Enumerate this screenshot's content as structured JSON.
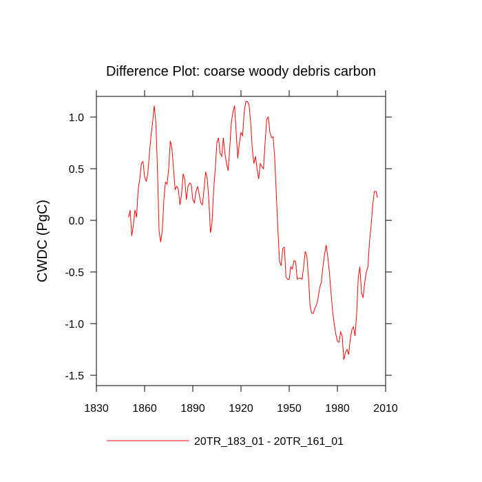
{
  "chart_data": {
    "type": "line",
    "title": "Difference Plot: coarse woody debris carbon",
    "y_label": "CWDC  (PgC)",
    "x": [
      1850,
      1851,
      1852,
      1853,
      1854,
      1855,
      1856,
      1857,
      1858,
      1859,
      1860,
      1861,
      1862,
      1863,
      1864,
      1865,
      1866,
      1867,
      1868,
      1869,
      1870,
      1871,
      1872,
      1873,
      1874,
      1875,
      1876,
      1877,
      1878,
      1879,
      1880,
      1881,
      1882,
      1883,
      1884,
      1885,
      1886,
      1887,
      1888,
      1889,
      1890,
      1891,
      1892,
      1893,
      1894,
      1895,
      1896,
      1897,
      1898,
      1899,
      1900,
      1901,
      1902,
      1903,
      1904,
      1905,
      1906,
      1907,
      1908,
      1909,
      1910,
      1911,
      1912,
      1913,
      1914,
      1915,
      1916,
      1917,
      1918,
      1919,
      1920,
      1921,
      1922,
      1923,
      1924,
      1925,
      1926,
      1927,
      1928,
      1929,
      1930,
      1931,
      1932,
      1933,
      1934,
      1935,
      1936,
      1937,
      1938,
      1939,
      1940,
      1941,
      1942,
      1943,
      1944,
      1945,
      1946,
      1947,
      1948,
      1949,
      1950,
      1951,
      1952,
      1953,
      1954,
      1955,
      1956,
      1957,
      1958,
      1959,
      1960,
      1961,
      1962,
      1963,
      1964,
      1965,
      1966,
      1967,
      1968,
      1969,
      1970,
      1971,
      1972,
      1973,
      1974,
      1975,
      1976,
      1977,
      1978,
      1979,
      1980,
      1981,
      1982,
      1983,
      1984,
      1985,
      1986,
      1987,
      1988,
      1989,
      1990,
      1991,
      1992,
      1993,
      1994,
      1995,
      1996,
      1997,
      1998,
      1999,
      2000,
      2001,
      2002,
      2003,
      2004,
      2005
    ],
    "series": [
      {
        "name": "20TR_183_01 - 20TR_161_01",
        "color": "#ff0000",
        "values": [
          0.03,
          0.1,
          -0.15,
          -0.05,
          0.1,
          0.03,
          0.3,
          0.4,
          0.55,
          0.57,
          0.42,
          0.38,
          0.45,
          0.65,
          0.82,
          0.95,
          1.11,
          0.95,
          0.5,
          -0.1,
          -0.21,
          -0.1,
          0.2,
          0.37,
          0.35,
          0.5,
          0.77,
          0.7,
          0.5,
          0.3,
          0.33,
          0.3,
          0.15,
          0.25,
          0.45,
          0.4,
          0.2,
          0.33,
          0.36,
          0.35,
          0.2,
          0.17,
          0.28,
          0.33,
          0.25,
          0.17,
          0.15,
          0.3,
          0.47,
          0.4,
          0.2,
          -0.12,
          -0.02,
          0.3,
          0.5,
          0.75,
          0.8,
          0.65,
          0.62,
          0.8,
          0.65,
          0.55,
          0.48,
          0.7,
          0.95,
          1.05,
          1.11,
          0.85,
          0.6,
          0.75,
          0.85,
          0.82,
          1.05,
          1.15,
          1.15,
          1.12,
          0.95,
          0.7,
          0.55,
          0.62,
          0.5,
          0.4,
          0.55,
          0.52,
          0.5,
          0.75,
          0.98,
          1.0,
          0.85,
          0.8,
          0.81,
          0.6,
          0.25,
          -0.1,
          -0.4,
          -0.44,
          -0.27,
          -0.26,
          -0.55,
          -0.57,
          -0.57,
          -0.45,
          -0.47,
          -0.39,
          -0.4,
          -0.57,
          -0.56,
          -0.56,
          -0.57,
          -0.45,
          -0.3,
          -0.35,
          -0.55,
          -0.83,
          -0.9,
          -0.9,
          -0.85,
          -0.82,
          -0.75,
          -0.65,
          -0.6,
          -0.45,
          -0.33,
          -0.24,
          -0.35,
          -0.5,
          -0.7,
          -0.88,
          -1.0,
          -1.1,
          -1.17,
          -1.18,
          -1.08,
          -1.12,
          -1.35,
          -1.28,
          -1.25,
          -1.3,
          -1.15,
          -1.06,
          -1.03,
          -1.12,
          -0.9,
          -0.55,
          -0.45,
          -0.7,
          -0.75,
          -0.6,
          -0.5,
          -0.45,
          -0.2,
          -0.05,
          0.15,
          0.28,
          0.28,
          0.22
        ]
      }
    ],
    "xlim": [
      1830,
      2010
    ],
    "ylim": [
      -1.6,
      1.2
    ],
    "xticks": [
      1830,
      1860,
      1890,
      1920,
      1950,
      1980,
      2010
    ],
    "yticks": [
      {
        "value": -1.5,
        "label": "-1.5"
      },
      {
        "value": -1,
        "label": "-1.0"
      },
      -0.5,
      {
        "value": 0,
        "label": "0.0"
      },
      0.5,
      {
        "value": 1,
        "label": "1.0"
      }
    ]
  }
}
